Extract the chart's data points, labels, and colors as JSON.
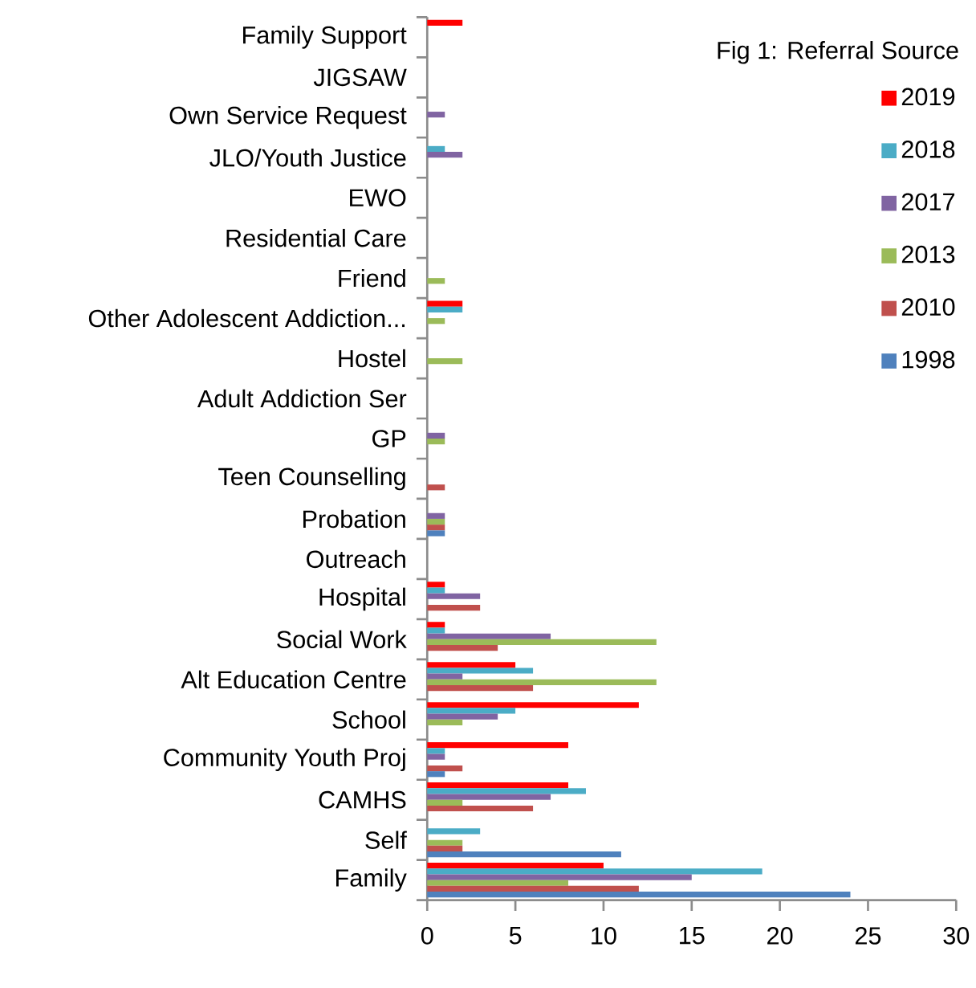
{
  "chart_data": {
    "type": "bar",
    "orientation": "horizontal",
    "legend_title": "Fig 1: Referral Source",
    "legend": "top right",
    "categories": [
      "Family Support",
      "JIGSAW",
      "Own Service Request",
      "JLO/Youth Justice",
      "EWO",
      "Residential Care",
      "Friend",
      "Other Adolescent Addiction...",
      "Hostel",
      "Adult Addiction Ser",
      "GP",
      "Teen Counselling",
      "Probation",
      "Outreach",
      "Hospital",
      "Social Work",
      "Alt Education Centre",
      "School",
      "Community Youth Proj",
      "CAMHS",
      "Self",
      "Family"
    ],
    "xlim": [
      0,
      30
    ],
    "xticks": [
      0,
      5,
      10,
      15,
      20,
      25,
      30
    ],
    "series": [
      {
        "name": "2019",
        "color": "#ff0000",
        "values": [
          2,
          0,
          0,
          0,
          0,
          0,
          0,
          2,
          0,
          0,
          0,
          0,
          0,
          0,
          1,
          1,
          5,
          12,
          8,
          8,
          0,
          10
        ]
      },
      {
        "name": "2018",
        "color": "#4bacc6",
        "values": [
          0,
          0,
          0,
          1,
          0,
          0,
          0,
          2,
          0,
          0,
          0,
          0,
          0,
          0,
          1,
          1,
          6,
          5,
          1,
          9,
          3,
          19
        ]
      },
      {
        "name": "2017",
        "color": "#8064a2",
        "values": [
          0,
          0,
          1,
          2,
          0,
          0,
          0,
          0,
          0,
          0,
          1,
          0,
          1,
          0,
          3,
          7,
          2,
          4,
          1,
          7,
          0,
          15
        ]
      },
      {
        "name": "2013",
        "color": "#9bbb59",
        "values": [
          0,
          0,
          0,
          0,
          0,
          0,
          1,
          1,
          2,
          0,
          1,
          0,
          1,
          0,
          0,
          13,
          13,
          2,
          0,
          2,
          2,
          8
        ]
      },
      {
        "name": "2010",
        "color": "#c0504d",
        "values": [
          0,
          0,
          0,
          0,
          0,
          0,
          0,
          0,
          0,
          0,
          0,
          1,
          1,
          0,
          3,
          4,
          6,
          0,
          2,
          6,
          2,
          12
        ]
      },
      {
        "name": "1998",
        "color": "#4f81bd",
        "values": [
          0,
          0,
          0,
          0,
          0,
          0,
          0,
          0,
          0,
          0,
          0,
          0,
          1,
          0,
          0,
          0,
          0,
          0,
          1,
          0,
          11,
          24
        ]
      }
    ]
  }
}
